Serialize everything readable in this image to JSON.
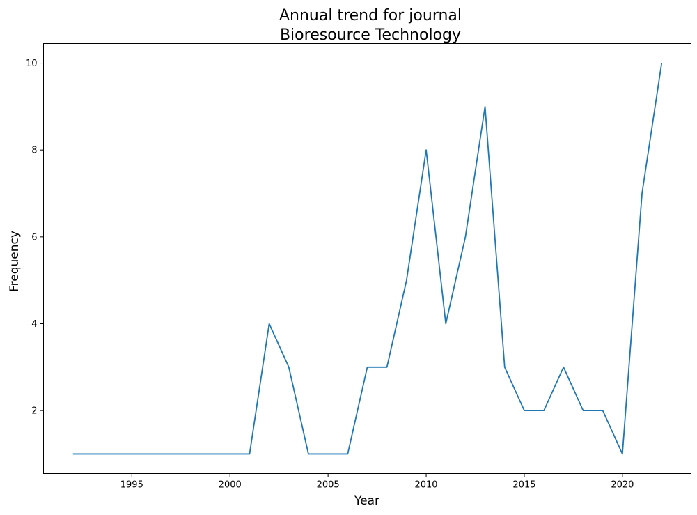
{
  "chart_data": {
    "type": "line",
    "title": "Annual trend for journal\n Bioresource Technology",
    "title_lines": [
      "Annual trend for journal",
      "Bioresource Technology"
    ],
    "xlabel": "Year",
    "ylabel": "Frequency",
    "xlim": [
      1990.5,
      2023.5
    ],
    "ylim": [
      0.55,
      10.45
    ],
    "xticks": [
      1995,
      2000,
      2005,
      2010,
      2015,
      2020
    ],
    "yticks": [
      2,
      4,
      6,
      8,
      10
    ],
    "grid": false,
    "line_color": "#1f77b4",
    "x": [
      1992,
      1993,
      1994,
      1995,
      1996,
      1997,
      1998,
      1999,
      2000,
      2001,
      2002,
      2003,
      2004,
      2005,
      2006,
      2007,
      2008,
      2009,
      2010,
      2011,
      2012,
      2013,
      2014,
      2015,
      2016,
      2017,
      2018,
      2019,
      2020,
      2021,
      2022
    ],
    "y": [
      1,
      1,
      1,
      1,
      1,
      1,
      1,
      1,
      1,
      1,
      4,
      3,
      1,
      1,
      1,
      3,
      3,
      5,
      8,
      4,
      6,
      9,
      3,
      2,
      2,
      3,
      2,
      2,
      1,
      7,
      10
    ]
  }
}
